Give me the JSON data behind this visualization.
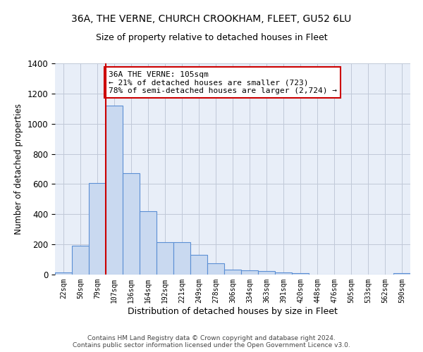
{
  "title1": "36A, THE VERNE, CHURCH CROOKHAM, FLEET, GU52 6LU",
  "title2": "Size of property relative to detached houses in Fleet",
  "xlabel": "Distribution of detached houses by size in Fleet",
  "ylabel": "Number of detached properties",
  "footer1": "Contains HM Land Registry data © Crown copyright and database right 2024.",
  "footer2": "Contains public sector information licensed under the Open Government Licence v3.0.",
  "bar_labels": [
    "22sqm",
    "50sqm",
    "79sqm",
    "107sqm",
    "136sqm",
    "164sqm",
    "192sqm",
    "221sqm",
    "249sqm",
    "278sqm",
    "306sqm",
    "334sqm",
    "363sqm",
    "391sqm",
    "420sqm",
    "448sqm",
    "476sqm",
    "505sqm",
    "533sqm",
    "562sqm",
    "590sqm"
  ],
  "bar_values": [
    15,
    190,
    608,
    1120,
    670,
    420,
    215,
    215,
    130,
    75,
    35,
    30,
    25,
    12,
    10,
    0,
    0,
    0,
    0,
    0,
    10
  ],
  "bar_color": "#c9d9f0",
  "bar_edge_color": "#5b8fd4",
  "vline_bar_index": 3,
  "vline_color": "#cc0000",
  "annotation_text": "36A THE VERNE: 105sqm\n← 21% of detached houses are smaller (723)\n78% of semi-detached houses are larger (2,724) →",
  "annotation_box_color": "white",
  "annotation_edge_color": "#cc0000",
  "ylim": [
    0,
    1400
  ],
  "yticks": [
    0,
    200,
    400,
    600,
    800,
    1000,
    1200,
    1400
  ],
  "grid_color": "#c0c8d8",
  "bg_color": "#e8eef8",
  "title_fontsize": 10,
  "subtitle_fontsize": 9,
  "annotation_fontsize": 8,
  "ylabel_fontsize": 8.5,
  "xlabel_fontsize": 9
}
